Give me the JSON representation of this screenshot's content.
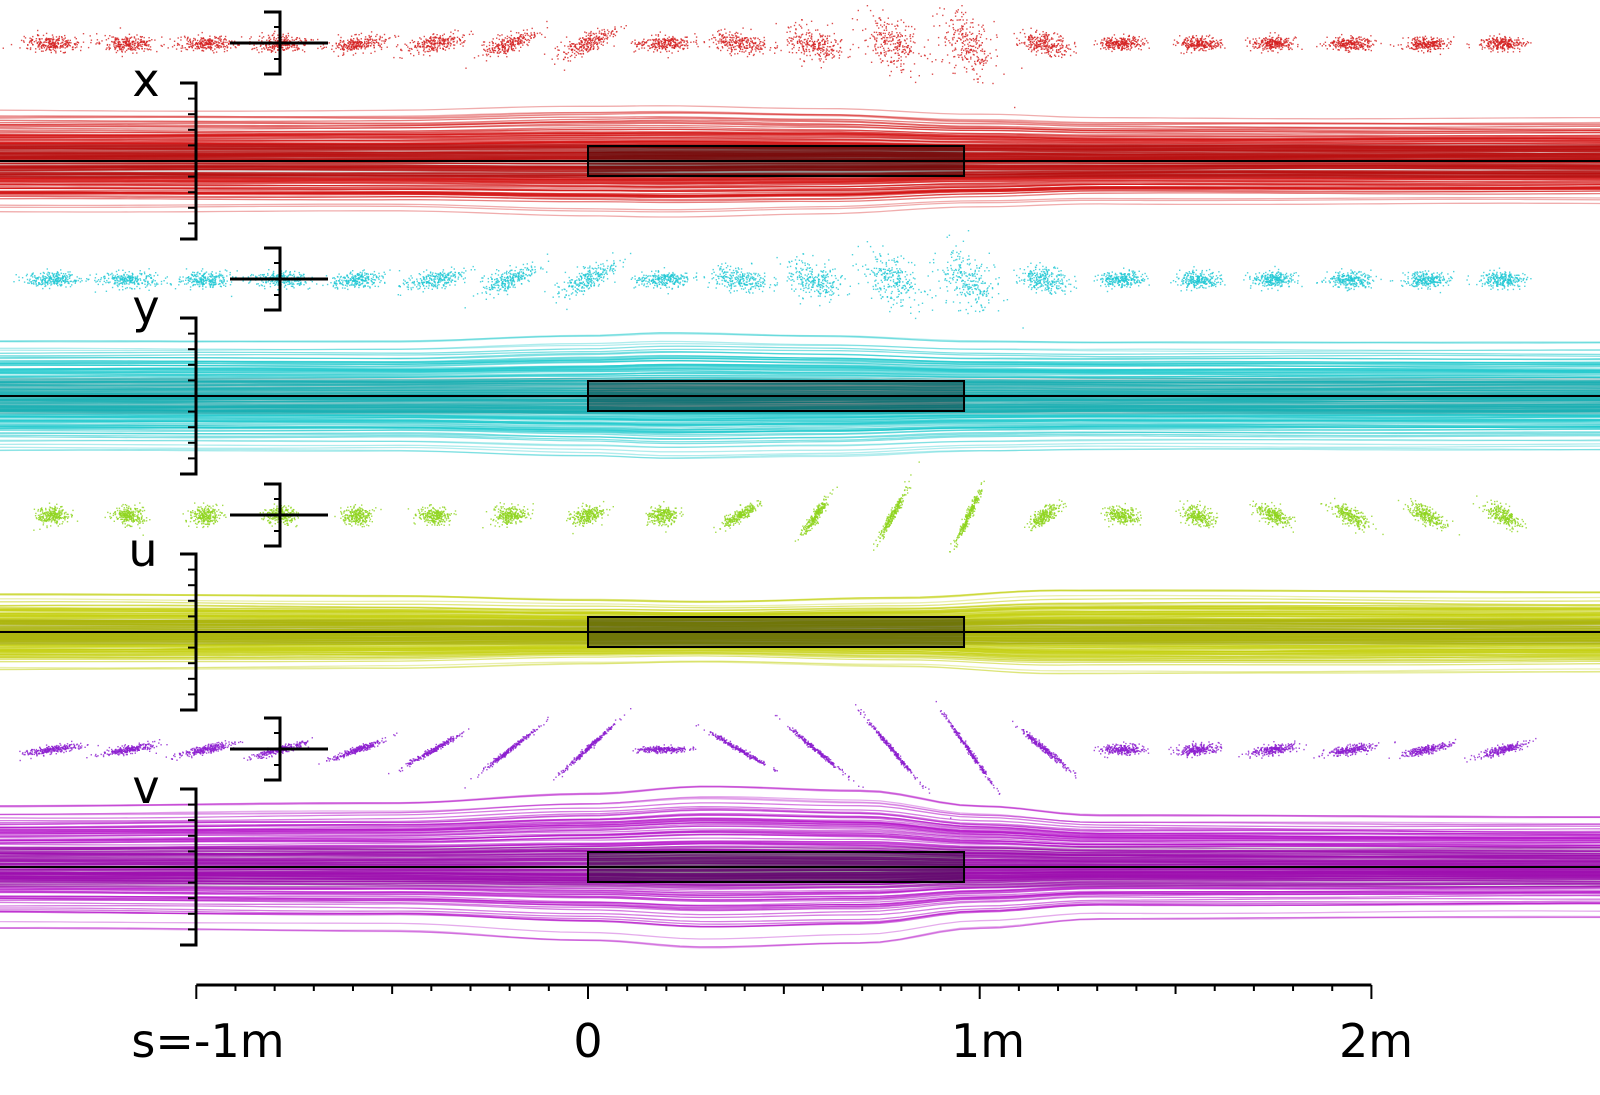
{
  "chart_data": {
    "type": "line",
    "xaxis": {
      "label_prefix": "s=",
      "range": [
        -1.5,
        2.5
      ],
      "major_ticks": [
        -1,
        0,
        1,
        2
      ],
      "tick_labels": [
        "s=-1m",
        "0",
        "1m",
        "2m"
      ],
      "minor_step": 0.1
    },
    "element": {
      "s_start": 0,
      "s_end": 0.96
    },
    "ellipse_s": [
      -1.37,
      -1.175,
      -0.98,
      -0.785,
      -0.59,
      -0.395,
      -0.2,
      -0.005,
      0.19,
      0.385,
      0.58,
      0.775,
      0.97,
      1.165,
      1.36,
      1.555,
      1.75,
      1.945,
      2.14,
      2.335
    ],
    "panels": [
      {
        "label": "x",
        "color": "#d41414",
        "ellipse_color": "#d42020",
        "envelope": {
          "s": [
            -1.5,
            -0.5,
            0,
            0.2,
            0.6,
            1.0,
            1.3,
            2.5
          ],
          "half_width": [
            1.0,
            1.0,
            1.08,
            1.1,
            1.05,
            0.92,
            0.85,
            0.85
          ]
        },
        "ellipses": {
          "angle": [
            0,
            0,
            0,
            0,
            -8,
            -12,
            -18,
            -22,
            0,
            8,
            18,
            30,
            62,
            12,
            0,
            0,
            0,
            0,
            0,
            0
          ],
          "a": [
            1,
            1,
            1,
            1,
            1,
            1,
            1.05,
            1.1,
            1,
            1.05,
            1.1,
            1.2,
            1.3,
            0.9,
            0.8,
            0.8,
            0.8,
            0.8,
            0.8,
            0.8
          ],
          "b": [
            0.3,
            0.3,
            0.3,
            0.3,
            0.3,
            0.32,
            0.35,
            0.35,
            0.3,
            0.4,
            0.6,
            0.8,
            0.9,
            0.4,
            0.25,
            0.25,
            0.25,
            0.25,
            0.25,
            0.25
          ]
        }
      },
      {
        "label": "y",
        "color": "#1ec8cc",
        "ellipse_color": "#20c8d4",
        "envelope": {
          "s": [
            -1.5,
            -0.5,
            0,
            0.2,
            0.6,
            1.0,
            1.3,
            2.5
          ],
          "half_width": [
            1.0,
            1.0,
            1.1,
            1.15,
            1.1,
            1.0,
            0.98,
            0.98
          ]
        },
        "ellipses": {
          "angle": [
            0,
            0,
            0,
            0,
            -5,
            -12,
            -20,
            -25,
            0,
            10,
            20,
            30,
            50,
            10,
            0,
            0,
            0,
            0,
            0,
            0
          ],
          "a": [
            1,
            1,
            1,
            1,
            1,
            1.05,
            1.1,
            1.1,
            1,
            1.05,
            1.1,
            1.2,
            1.2,
            0.9,
            0.8,
            0.8,
            0.8,
            0.8,
            0.8,
            0.8
          ],
          "b": [
            0.3,
            0.3,
            0.3,
            0.3,
            0.3,
            0.35,
            0.4,
            0.4,
            0.3,
            0.45,
            0.65,
            0.8,
            0.9,
            0.45,
            0.3,
            0.3,
            0.3,
            0.3,
            0.3,
            0.3
          ]
        }
      },
      {
        "label": "u",
        "color": "#c4d010",
        "ellipse_color": "#8ed41e",
        "envelope": {
          "s": [
            -1.5,
            -0.5,
            0,
            0.3,
            0.8,
            1.2,
            1.5,
            2.5
          ],
          "half_width": [
            1.0,
            0.95,
            0.85,
            0.8,
            0.9,
            1.1,
            1.1,
            1.05
          ]
        },
        "ellipses": {
          "angle": [
            0,
            0,
            0,
            0,
            0,
            0,
            -5,
            -10,
            0,
            -30,
            -55,
            -62,
            -65,
            -35,
            10,
            20,
            25,
            28,
            30,
            30
          ],
          "a": [
            0.55,
            0.55,
            0.55,
            0.55,
            0.55,
            0.55,
            0.6,
            0.6,
            0.55,
            0.7,
            0.85,
            1.0,
            1.05,
            0.65,
            0.6,
            0.65,
            0.7,
            0.75,
            0.75,
            0.75
          ],
          "b": [
            0.35,
            0.35,
            0.35,
            0.35,
            0.35,
            0.35,
            0.35,
            0.33,
            0.35,
            0.22,
            0.15,
            0.12,
            0.12,
            0.25,
            0.33,
            0.33,
            0.3,
            0.3,
            0.3,
            0.3
          ]
        }
      },
      {
        "label": "v",
        "color": "#b412c8",
        "ellipse_color": "#8c1ed0",
        "envelope": {
          "s": [
            -1.5,
            -0.5,
            0,
            0.3,
            0.7,
            1.0,
            1.3,
            2.5
          ],
          "half_width": [
            1.0,
            1.05,
            1.2,
            1.32,
            1.25,
            1.0,
            0.85,
            0.82
          ]
        },
        "ellipses": {
          "angle": [
            -8,
            -10,
            -12,
            -15,
            -20,
            -30,
            -38,
            -42,
            0,
            30,
            40,
            50,
            55,
            40,
            0,
            -5,
            -8,
            -10,
            -12,
            -15
          ],
          "a": [
            1.0,
            1.0,
            1.0,
            1.0,
            1.0,
            1.1,
            1.25,
            1.3,
            0.9,
            1.2,
            1.35,
            1.5,
            1.5,
            1.2,
            0.8,
            0.8,
            0.85,
            0.9,
            0.9,
            0.9
          ],
          "b": [
            0.15,
            0.15,
            0.15,
            0.15,
            0.12,
            0.1,
            0.08,
            0.08,
            0.12,
            0.08,
            0.07,
            0.07,
            0.07,
            0.1,
            0.2,
            0.2,
            0.18,
            0.17,
            0.15,
            0.15
          ]
        }
      }
    ]
  }
}
